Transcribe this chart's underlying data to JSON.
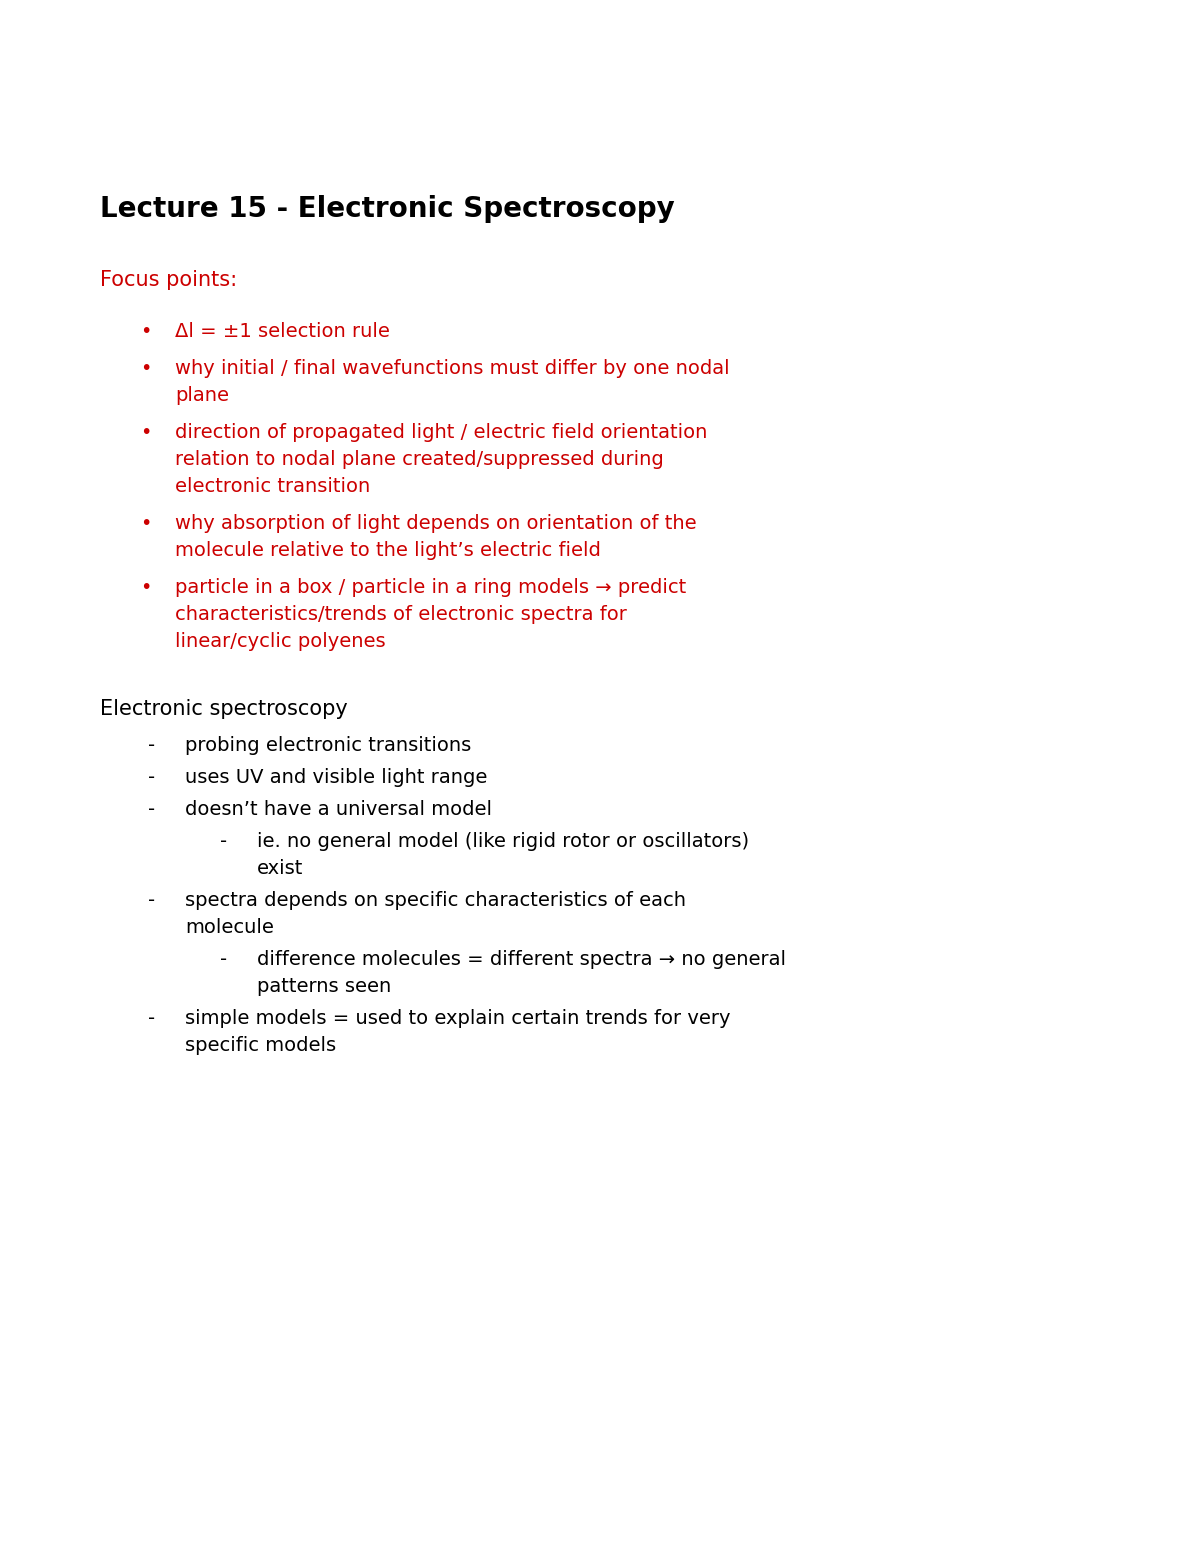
{
  "title": "Lecture 15 - Electronic Spectroscopy",
  "title_color": "#000000",
  "title_fontsize": 20,
  "background_color": "#ffffff",
  "focus_label": "Focus points:",
  "focus_label_color": "#cc0000",
  "focus_label_fontsize": 15,
  "red_color": "#cc0000",
  "black_color": "#000000",
  "red_bullet_fontsize": 14,
  "red_bullets": [
    [
      "Δl = ±1 selection rule"
    ],
    [
      "why initial / final wavefunctions must differ by one nodal",
      "plane"
    ],
    [
      "direction of propagated light / electric field orientation",
      "relation to nodal plane created/suppressed during",
      "electronic transition"
    ],
    [
      "why absorption of light depends on orientation of the",
      "molecule relative to the light’s electric field"
    ],
    [
      "particle in a box / particle in a ring models → predict",
      "characteristics/trends of electronic spectra for",
      "linear/cyclic polyenes"
    ]
  ],
  "section_title": "Electronic spectroscopy",
  "section_title_fontsize": 15,
  "black_fontsize": 14,
  "black_section": [
    {
      "level": 1,
      "lines": [
        "probing electronic transitions"
      ]
    },
    {
      "level": 1,
      "lines": [
        "uses UV and visible light range"
      ]
    },
    {
      "level": 1,
      "lines": [
        "doesn’t have a universal model"
      ]
    },
    {
      "level": 2,
      "lines": [
        "ie. no general model (like rigid rotor or oscillators)",
        "exist"
      ]
    },
    {
      "level": 1,
      "lines": [
        "spectra depends on specific characteristics of each",
        "molecule"
      ]
    },
    {
      "level": 2,
      "lines": [
        "difference molecules = different spectra → no general",
        "patterns seen"
      ]
    },
    {
      "level": 1,
      "lines": [
        "simple models = used to explain certain trends for very",
        "specific models"
      ]
    }
  ]
}
